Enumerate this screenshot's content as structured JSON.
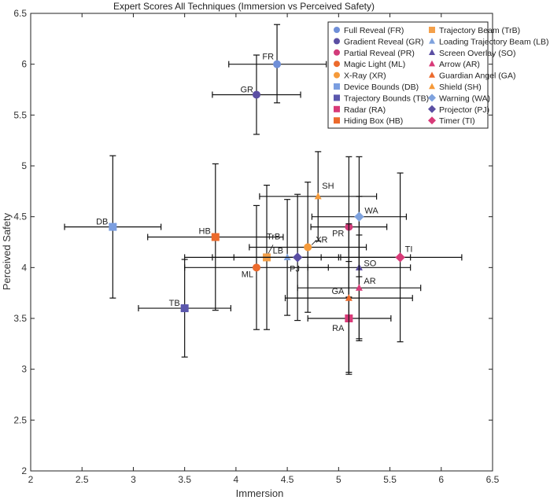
{
  "chart_data": {
    "type": "scatter",
    "title": "Expert Scores All Techniques (Immersion vs Perceived Safety)",
    "xlabel": "Immersion",
    "ylabel": "Perceived Safety",
    "xlim": [
      2,
      6.5
    ],
    "ylim": [
      2,
      6.5
    ],
    "xticks": [
      2,
      2.5,
      3,
      3.5,
      4,
      4.5,
      5,
      5.5,
      6,
      6.5
    ],
    "yticks": [
      2,
      2.5,
      3,
      3.5,
      4,
      4.5,
      5,
      5.5,
      6,
      6.5
    ],
    "xtick_labels": [
      "2",
      "2.5",
      "3",
      "3.5",
      "4",
      "4.5",
      "5",
      "5.5",
      "6",
      "6.5"
    ],
    "ytick_labels": [
      "2",
      "2.5",
      "3",
      "3.5",
      "4",
      "4.5",
      "5",
      "5.5",
      "6",
      "6.5"
    ],
    "grid": false,
    "legend_position": "top-right",
    "series": [
      {
        "name": "Full Reveal (FR)",
        "label": "FR",
        "marker": "circle",
        "color": "#6f8fd8",
        "x": 4.4,
        "y": 6.0,
        "xerr": [
          3.93,
          4.88
        ],
        "yerr": [
          5.62,
          6.39
        ]
      },
      {
        "name": "Gradient Reveal (GR)",
        "label": "GR",
        "marker": "circle",
        "color": "#5b4fa3",
        "x": 4.2,
        "y": 5.7,
        "xerr": [
          3.77,
          4.63
        ],
        "yerr": [
          5.31,
          6.09
        ]
      },
      {
        "name": "Partial Reveal (PR)",
        "label": "PR",
        "marker": "circle",
        "color": "#d23b7a",
        "x": 5.1,
        "y": 4.4,
        "xerr": [
          4.73,
          5.47
        ],
        "yerr": [
          3.71,
          5.09
        ]
      },
      {
        "name": "Magic Light (ML)",
        "label": "ML",
        "marker": "circle",
        "color": "#ec6a2c",
        "x": 4.2,
        "y": 4.0,
        "xerr": [
          3.5,
          4.9
        ],
        "yerr": [
          3.39,
          4.61
        ]
      },
      {
        "name": "X-Ray (XR)",
        "label": "XR",
        "marker": "circle",
        "color": "#f59a3a",
        "x": 4.7,
        "y": 4.2,
        "xerr": [
          4.13,
          5.27
        ],
        "yerr": [
          3.56,
          4.84
        ]
      },
      {
        "name": "Device Bounds (DB)",
        "label": "DB",
        "marker": "square",
        "color": "#7b9ee0",
        "x": 2.8,
        "y": 4.4,
        "xerr": [
          2.33,
          3.27
        ],
        "yerr": [
          3.7,
          5.1
        ]
      },
      {
        "name": "Trajectory Bounds (TB)",
        "label": "TB",
        "marker": "square",
        "color": "#5b57ad",
        "x": 3.5,
        "y": 3.6,
        "xerr": [
          3.05,
          3.95
        ],
        "yerr": [
          3.12,
          4.08
        ]
      },
      {
        "name": "Radar (RA)",
        "label": "RA",
        "marker": "square",
        "color": "#d83a78",
        "x": 5.1,
        "y": 3.5,
        "xerr": [
          4.7,
          5.51
        ],
        "yerr": [
          2.95,
          4.06
        ]
      },
      {
        "name": "Hiding Box (HB)",
        "label": "HB",
        "marker": "square",
        "color": "#ec6a2c",
        "x": 3.8,
        "y": 4.3,
        "xerr": [
          3.14,
          4.46
        ],
        "yerr": [
          3.58,
          5.02
        ]
      },
      {
        "name": "Trajectory Beam (TrB)",
        "label": "TrB",
        "marker": "square",
        "color": "#f4a04a",
        "x": 4.3,
        "y": 4.1,
        "xerr": [
          3.77,
          4.83
        ],
        "yerr": [
          3.39,
          4.81
        ]
      },
      {
        "name": "Loading Trajectory Beam (LB)",
        "label": "LB",
        "marker": "triangle",
        "color": "#7ea2de",
        "x": 4.5,
        "y": 4.1,
        "xerr": [
          3.98,
          5.02
        ],
        "yerr": [
          3.53,
          4.67
        ]
      },
      {
        "name": "Screen Overlay (SO)",
        "label": "SO",
        "marker": "triangle",
        "color": "#5b4fa3",
        "x": 5.2,
        "y": 4.0,
        "xerr": [
          4.7,
          5.7
        ],
        "yerr": [
          3.3,
          4.7
        ]
      },
      {
        "name": "Arrow (AR)",
        "label": "AR",
        "marker": "triangle",
        "color": "#d83a78",
        "x": 5.2,
        "y": 3.8,
        "xerr": [
          4.6,
          5.8
        ],
        "yerr": [
          3.28,
          4.32
        ]
      },
      {
        "name": "Guardian Angel (GA)",
        "label": "GA",
        "marker": "triangle",
        "color": "#ec6a2c",
        "x": 5.1,
        "y": 3.7,
        "xerr": [
          4.48,
          5.72
        ],
        "yerr": [
          2.97,
          4.43
        ]
      },
      {
        "name": "Shield (SH)",
        "label": "SH",
        "marker": "triangle",
        "color": "#f59a3a",
        "x": 4.8,
        "y": 4.7,
        "xerr": [
          4.23,
          5.37
        ],
        "yerr": [
          4.26,
          5.14
        ]
      },
      {
        "name": "Warning (WA)",
        "label": "WA",
        "marker": "diamond",
        "color": "#7ea2de",
        "x": 5.2,
        "y": 4.5,
        "xerr": [
          4.74,
          5.66
        ],
        "yerr": [
          3.91,
          5.09
        ]
      },
      {
        "name": "Projector (PJ)",
        "label": "PJ",
        "marker": "diamond",
        "color": "#5b4fa3",
        "x": 4.6,
        "y": 4.1,
        "xerr": [
          3.5,
          5.7
        ],
        "yerr": [
          3.48,
          4.72
        ]
      },
      {
        "name": "Timer (TI)",
        "label": "TI",
        "marker": "diamond",
        "color": "#d83a78",
        "x": 5.6,
        "y": 4.1,
        "xerr": [
          5.0,
          6.2
        ],
        "yerr": [
          3.27,
          4.93
        ]
      }
    ]
  }
}
